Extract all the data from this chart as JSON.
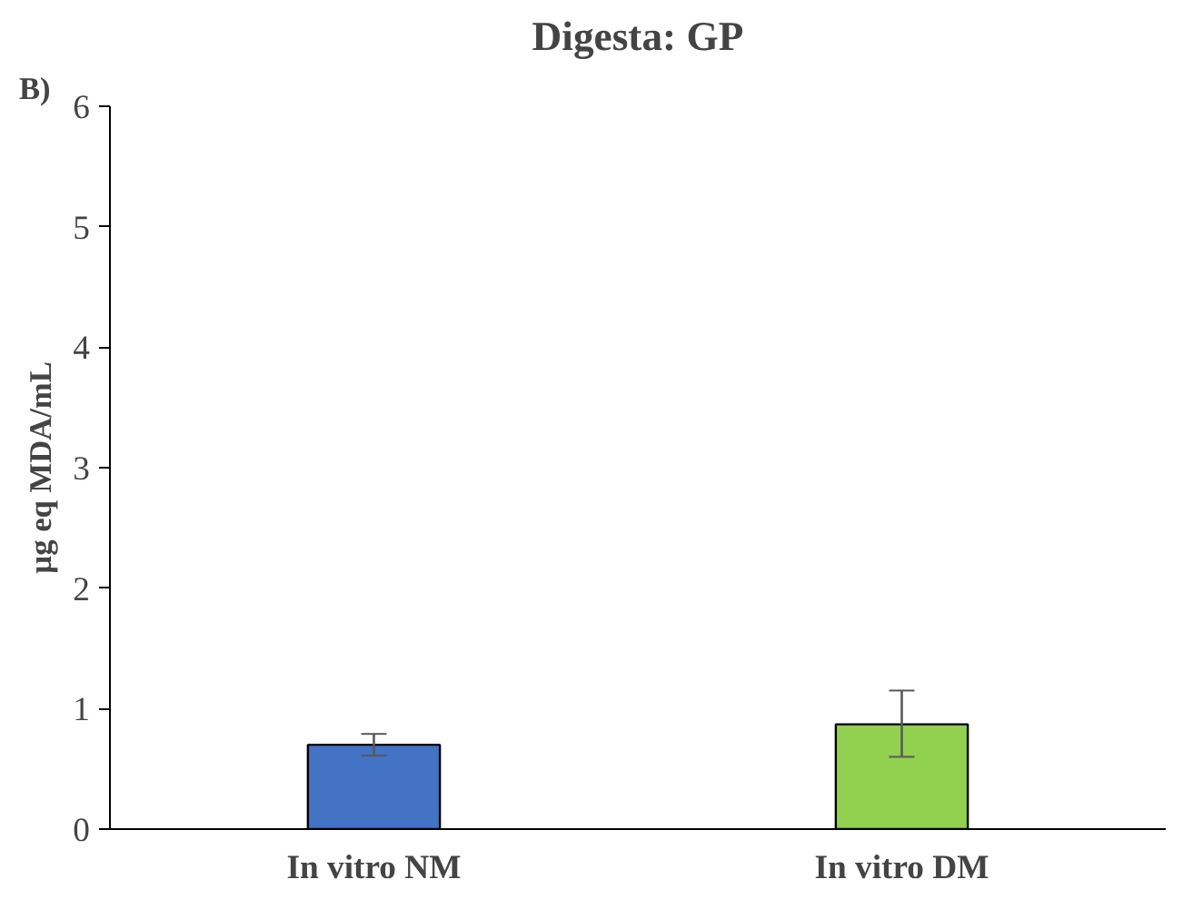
{
  "chart_data": {
    "type": "bar",
    "title": "Digesta: GP",
    "ylabel": "µg eq MDA/mL",
    "annotations": [
      "B)"
    ],
    "categories": [
      "In vitro NM",
      "In vitro DM"
    ],
    "values": [
      0.7,
      0.87
    ],
    "colors": [
      "#4472c4",
      "#92d050"
    ],
    "errors": [
      [
        0.61,
        0.79
      ],
      [
        0.6,
        1.15
      ]
    ],
    "ylim": [
      0,
      6
    ],
    "yticks": [
      0,
      1,
      2,
      3,
      4,
      5,
      6
    ],
    "grid": false
  }
}
